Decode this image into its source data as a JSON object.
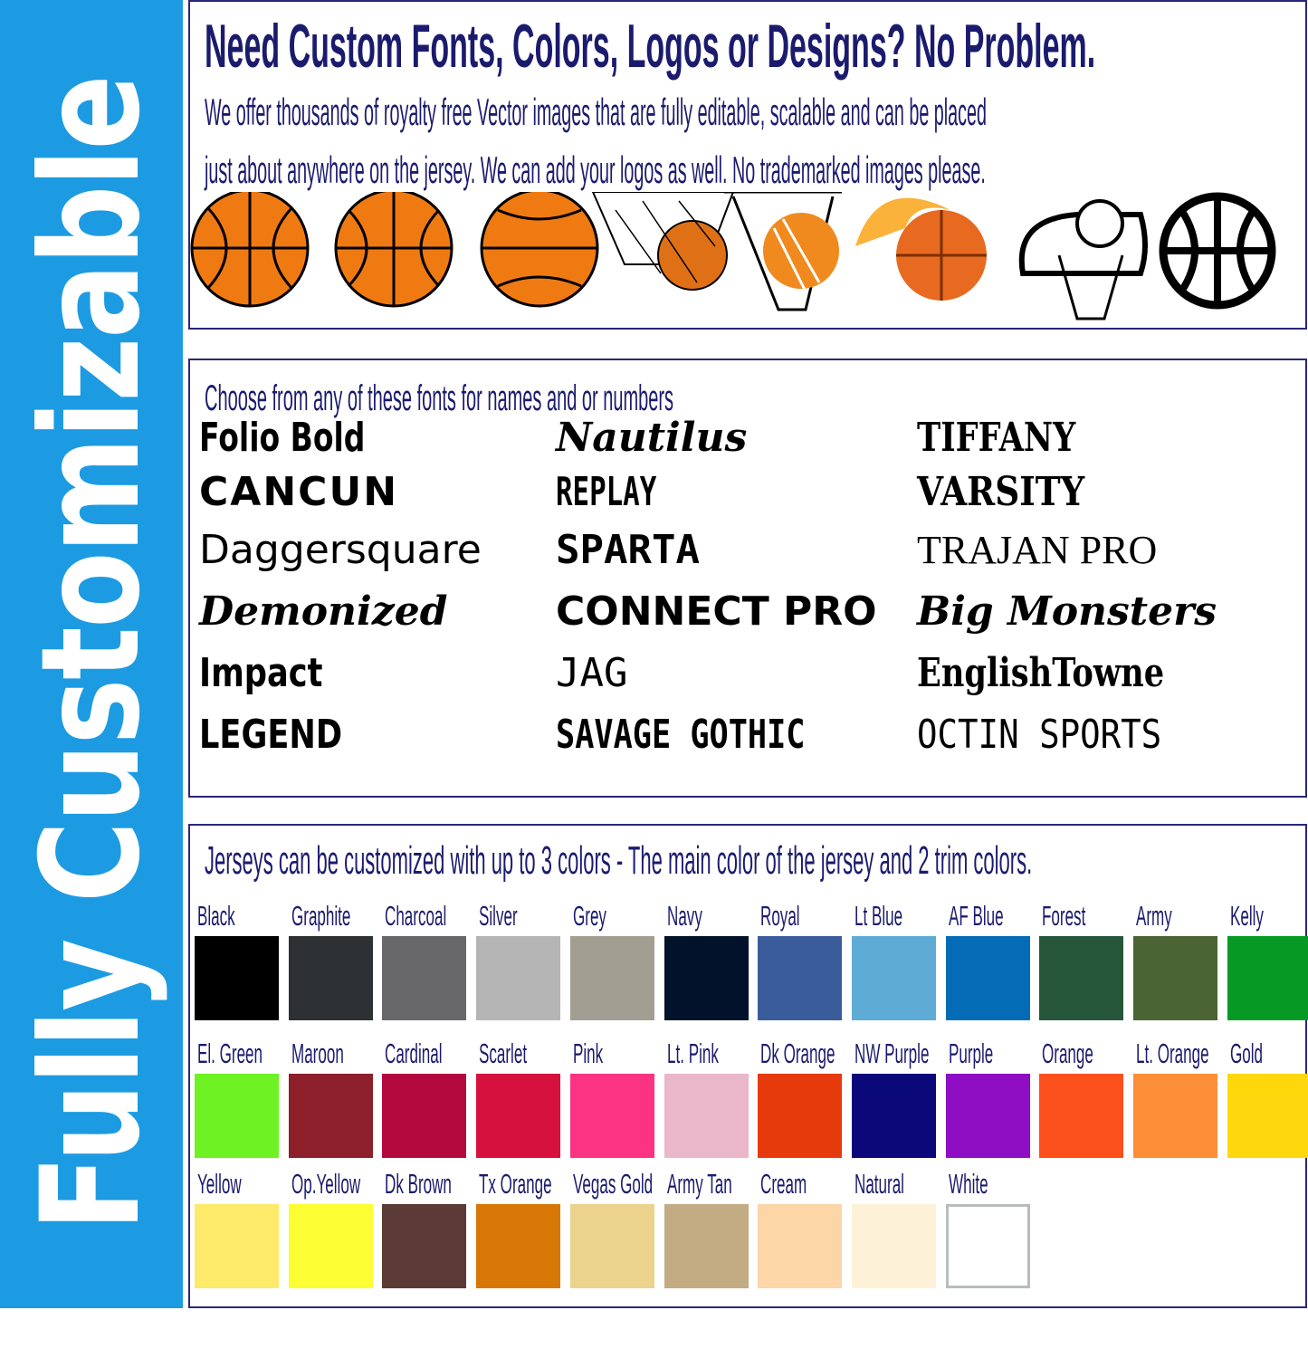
{
  "banner": {
    "text": "Fully Customizable",
    "color": "#1d9be2"
  },
  "intro": {
    "title": "Need Custom Fonts, Colors, Logos or Designs? No Problem.",
    "line1": "We offer thousands of royalty free Vector images that are fully editable, scalable and can be placed",
    "line2": "just about anywhere on the jersey.  We can add your logos as well.  No trademarked images please.",
    "icons": [
      "basketball-icon",
      "basketball-icon",
      "basketball-icon",
      "basketball-net-icon",
      "basketball-hoop-icon",
      "flaming-basketball-icon",
      "hoop-outline-icon",
      "basketball-outline-icon"
    ]
  },
  "fonts": {
    "heading": "Choose from any of these fonts for names and or numbers",
    "columns": [
      [
        "Folio Bold",
        "CANCUN",
        "Daggersquare",
        "Demonized",
        "Impact",
        "LEGEND"
      ],
      [
        "Nautilus",
        "REPLAY",
        "SPARTA",
        "CONNECT PRO",
        "JAG",
        "SAVAGE GOTHIC"
      ],
      [
        "TIFFANY",
        "VARSITY",
        "TRAJAN PRO",
        "Big Monsters",
        "EnglishTowne",
        "OCTIN SPORTS"
      ]
    ]
  },
  "colors": {
    "heading": "Jerseys can be customized with up to 3 colors - The main color of the jersey and 2 trim colors.",
    "rows": [
      [
        {
          "name": "Black",
          "hex": "#000000"
        },
        {
          "name": "Graphite",
          "hex": "#2e3134"
        },
        {
          "name": "Charcoal",
          "hex": "#68686b"
        },
        {
          "name": "Silver",
          "hex": "#b5b5b5"
        },
        {
          "name": "Grey",
          "hex": "#a29f92"
        },
        {
          "name": "Navy",
          "hex": "#02122a"
        },
        {
          "name": "Royal",
          "hex": "#3b5c9b"
        },
        {
          "name": "Lt Blue",
          "hex": "#5eabd6"
        },
        {
          "name": "AF Blue",
          "hex": "#046bb6"
        },
        {
          "name": "Forest",
          "hex": "#27573b"
        },
        {
          "name": "Army",
          "hex": "#4a6433"
        },
        {
          "name": "Kelly",
          "hex": "#069a25"
        }
      ],
      [
        {
          "name": "El. Green",
          "hex": "#6ef223"
        },
        {
          "name": "Maroon",
          "hex": "#8c1f2a"
        },
        {
          "name": "Cardinal",
          "hex": "#b4093f"
        },
        {
          "name": "Scarlet",
          "hex": "#d7113d"
        },
        {
          "name": "Pink",
          "hex": "#fc3282"
        },
        {
          "name": "Lt. Pink",
          "hex": "#eab6ca"
        },
        {
          "name": "Dk Orange",
          "hex": "#e63a0c"
        },
        {
          "name": "NW Purple",
          "hex": "#0b0879"
        },
        {
          "name": "Purple",
          "hex": "#8f0dc3"
        },
        {
          "name": "Orange",
          "hex": "#fc501c"
        },
        {
          "name": "Lt. Orange",
          "hex": "#fd8e38"
        },
        {
          "name": "Gold",
          "hex": "#fed80d"
        }
      ],
      [
        {
          "name": "Yellow",
          "hex": "#fde96a"
        },
        {
          "name": "Op.Yellow",
          "hex": "#fdfd33"
        },
        {
          "name": "Dk Brown",
          "hex": "#5c3a35"
        },
        {
          "name": "Tx Orange",
          "hex": "#d67706"
        },
        {
          "name": "Vegas Gold",
          "hex": "#ebd38d"
        },
        {
          "name": "Army Tan",
          "hex": "#c3ab83"
        },
        {
          "name": "Cream",
          "hex": "#fcd6a6"
        },
        {
          "name": "Natural",
          "hex": "#fdf1d8"
        },
        {
          "name": "White",
          "hex": "#ffffff"
        }
      ]
    ]
  }
}
